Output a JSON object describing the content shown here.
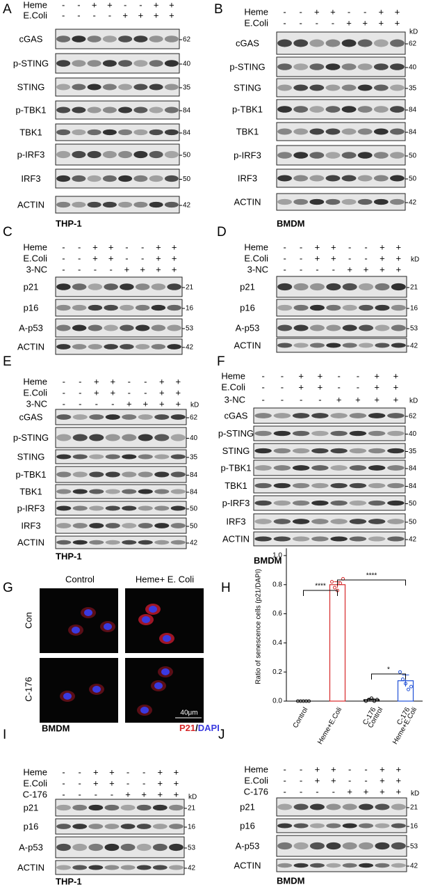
{
  "panels": [
    {
      "label": "A",
      "treatments": [
        {
          "name": "Heme",
          "signs": [
            "-",
            "-",
            "+",
            "+",
            "-",
            "-",
            "+",
            "+"
          ]
        },
        {
          "name": "E.Coli",
          "signs": [
            "-",
            "-",
            "-",
            "-",
            "+",
            "+",
            "+",
            "+"
          ]
        }
      ],
      "blots": [
        {
          "name": "cGAS",
          "kd": 62
        },
        {
          "name": "p-STING",
          "kd": 40
        },
        {
          "name": "STING",
          "kd": 35
        },
        {
          "name": "p-TBK1",
          "kd": 84
        },
        {
          "name": "TBK1",
          "kd": 84
        },
        {
          "name": "p-IRF3",
          "kd": 50
        },
        {
          "name": "IRF3",
          "kd": 50
        },
        {
          "name": "ACTIN",
          "kd": 42
        }
      ],
      "cell": "THP-1"
    },
    {
      "label": "B",
      "kd_unit": "kD",
      "treatments": [
        {
          "name": "Heme",
          "signs": [
            "-",
            "-",
            "+",
            "+",
            "-",
            "-",
            "+",
            "+"
          ]
        },
        {
          "name": "E.Coli",
          "signs": [
            "-",
            "-",
            "-",
            "-",
            "+",
            "+",
            "+",
            "+"
          ]
        }
      ],
      "blots": [
        {
          "name": "cGAS",
          "kd": 62
        },
        {
          "name": "p-STING",
          "kd": 40
        },
        {
          "name": "STING",
          "kd": 35
        },
        {
          "name": "p-TBK1",
          "kd": 84
        },
        {
          "name": "TBK1",
          "kd": 84
        },
        {
          "name": "p-IRF3",
          "kd": 50
        },
        {
          "name": "IRF3",
          "kd": 50
        },
        {
          "name": "ACTIN",
          "kd": 42
        }
      ],
      "cell": "BMDM"
    },
    {
      "label": "C",
      "treatments": [
        {
          "name": "Heme",
          "signs": [
            "-",
            "-",
            "+",
            "+",
            "-",
            "-",
            "+",
            "+"
          ]
        },
        {
          "name": "E.Coli",
          "signs": [
            "-",
            "-",
            "+",
            "+",
            "-",
            "-",
            "+",
            "+"
          ]
        },
        {
          "name": "3-NC",
          "signs": [
            "-",
            "-",
            "-",
            "-",
            "+",
            "+",
            "+",
            "+"
          ]
        }
      ],
      "blots": [
        {
          "name": "p21",
          "kd": 21
        },
        {
          "name": "p16",
          "kd": 16
        },
        {
          "name": "A-p53",
          "kd": 53
        },
        {
          "name": "ACTIN",
          "kd": 42
        }
      ]
    },
    {
      "label": "D",
      "kd_unit": "kD",
      "treatments": [
        {
          "name": "Heme",
          "signs": [
            "-",
            "-",
            "+",
            "+",
            "-",
            "-",
            "+",
            "+"
          ]
        },
        {
          "name": "E.Coli",
          "signs": [
            "-",
            "-",
            "+",
            "+",
            "-",
            "-",
            "+",
            "+"
          ]
        },
        {
          "name": "3-NC",
          "signs": [
            "-",
            "-",
            "-",
            "-",
            "+",
            "+",
            "+",
            "+"
          ]
        }
      ],
      "blots": [
        {
          "name": "p21",
          "kd": 21
        },
        {
          "name": "p16",
          "kd": 16
        },
        {
          "name": "A-p53",
          "kd": 53
        },
        {
          "name": "ACTIN",
          "kd": 42
        }
      ]
    },
    {
      "label": "E",
      "kd_unit": "kD",
      "treatments": [
        {
          "name": "Heme",
          "signs": [
            "-",
            "-",
            "+",
            "+",
            "-",
            "-",
            "+",
            "+"
          ]
        },
        {
          "name": "E.Coli",
          "signs": [
            "-",
            "-",
            "+",
            "+",
            "-",
            "-",
            "+",
            "+"
          ]
        },
        {
          "name": "3-NC",
          "signs": [
            "-",
            "-",
            "-",
            "-",
            "+",
            "+",
            "+",
            "+"
          ]
        }
      ],
      "blots": [
        {
          "name": "cGAS",
          "kd": 62
        },
        {
          "name": "p-STING",
          "kd": 40
        },
        {
          "name": "STING",
          "kd": 35
        },
        {
          "name": "p-TBK1",
          "kd": 84
        },
        {
          "name": "TBK1",
          "kd": 84
        },
        {
          "name": "p-IRF3",
          "kd": 50
        },
        {
          "name": "IRF3",
          "kd": 50
        },
        {
          "name": "ACTIN",
          "kd": 42
        }
      ],
      "cell": "THP-1"
    },
    {
      "label": "F",
      "kd_unit": "kD",
      "treatments": [
        {
          "name": "Heme",
          "signs": [
            "-",
            "-",
            "+",
            "+",
            "-",
            "-",
            "+",
            "+"
          ]
        },
        {
          "name": "E.Coli",
          "signs": [
            "-",
            "-",
            "+",
            "+",
            "-",
            "-",
            "+",
            "+"
          ]
        },
        {
          "name": "3-NC",
          "signs": [
            "-",
            "-",
            "-",
            "-",
            "+",
            "+",
            "+",
            "+"
          ]
        }
      ],
      "blots": [
        {
          "name": "cGAS",
          "kd": 62
        },
        {
          "name": "p-STING",
          "kd": 40
        },
        {
          "name": "STING",
          "kd": 35
        },
        {
          "name": "p-TBK1",
          "kd": 84
        },
        {
          "name": "TBK1",
          "kd": 84
        },
        {
          "name": "p-IRF3",
          "kd": 50
        },
        {
          "name": "IRF3",
          "kd": 50
        },
        {
          "name": "ACTIN",
          "kd": 42
        }
      ],
      "cell": "BMDM"
    },
    {
      "label": "I",
      "kd_unit": "kD",
      "treatments": [
        {
          "name": "Heme",
          "signs": [
            "-",
            "-",
            "+",
            "+",
            "-",
            "-",
            "+",
            "+"
          ]
        },
        {
          "name": "E.Coli",
          "signs": [
            "-",
            "-",
            "+",
            "+",
            "-",
            "-",
            "+",
            "+"
          ]
        },
        {
          "name": "C-176",
          "signs": [
            "-",
            "-",
            "-",
            "-",
            "+",
            "+",
            "+",
            "+"
          ]
        }
      ],
      "blots": [
        {
          "name": "p21",
          "kd": 21
        },
        {
          "name": "p16",
          "kd": 16
        },
        {
          "name": "A-p53",
          "kd": 53
        },
        {
          "name": "ACTIN",
          "kd": 42
        }
      ],
      "cell": "THP-1"
    },
    {
      "label": "J",
      "kd_unit": "kD",
      "treatments": [
        {
          "name": "Heme",
          "signs": [
            "-",
            "-",
            "+",
            "+",
            "-",
            "-",
            "+",
            "+"
          ]
        },
        {
          "name": "E.Coli",
          "signs": [
            "-",
            "-",
            "+",
            "+",
            "-",
            "-",
            "+",
            "+"
          ]
        },
        {
          "name": "C-176",
          "signs": [
            "-",
            "-",
            "-",
            "-",
            "+",
            "+",
            "+",
            "+"
          ]
        }
      ],
      "blots": [
        {
          "name": "p21",
          "kd": 21
        },
        {
          "name": "p16",
          "kd": 16
        },
        {
          "name": "A-p53",
          "kd": 53
        },
        {
          "name": "ACTIN",
          "kd": 42
        }
      ],
      "cell": "BMDM"
    }
  ],
  "imaging": {
    "label": "G",
    "columns": [
      "Control",
      "Heme+ E. Coli"
    ],
    "rows": [
      "Con",
      "C-176"
    ],
    "cell": "BMDM",
    "scale_bar": "40μm",
    "stain": [
      "P21",
      "/",
      "DAPI"
    ]
  },
  "chart_data": {
    "type": "bar",
    "panel_label": "H",
    "ylabel": "Ratio of senescence cells (p21/DAPI)",
    "categories": [
      [
        "Control"
      ],
      [
        "Heme+E.Coli"
      ],
      [
        "C-176",
        "Control"
      ],
      [
        "C-176",
        "Heme+E.Coli"
      ]
    ],
    "values": [
      0,
      0.8,
      0.01,
      0.14
    ],
    "errors": [
      0,
      0.02,
      0.005,
      0.04
    ],
    "points": [
      [
        0,
        0,
        0,
        0,
        0
      ],
      [
        0.82,
        0.78,
        0.76,
        0.81,
        0.84
      ],
      [
        0,
        0.01,
        0.02,
        0,
        0.01
      ],
      [
        0.2,
        0.15,
        0.12,
        0.08,
        0.1
      ]
    ],
    "colors": [
      "#000000",
      "#d62728",
      "#000000",
      "#1f4fd6"
    ],
    "ylim": [
      0,
      1.05
    ],
    "yticks": [
      {
        "value": 0,
        "label": "0.0"
      },
      0.2,
      0.4,
      0.6,
      0.8,
      {
        "value": 1,
        "label": "1.0"
      }
    ],
    "annotations": [
      "****",
      "****",
      "*"
    ]
  }
}
